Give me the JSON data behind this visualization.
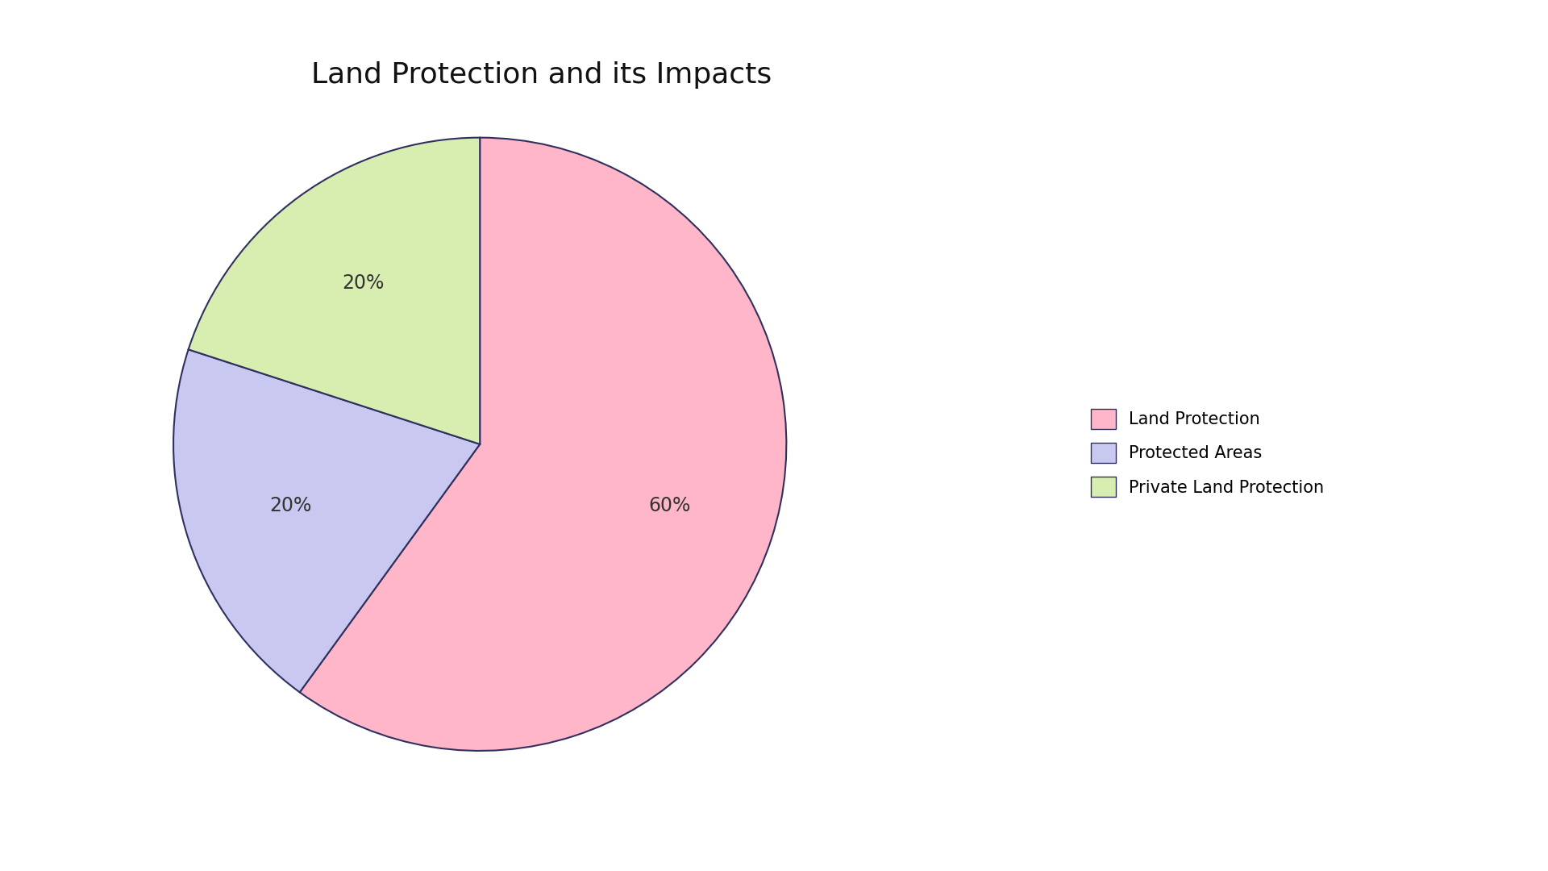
{
  "title": "Land Protection and its Impacts",
  "title_fontsize": 26,
  "labels": [
    "Land Protection",
    "Protected Areas",
    "Private Land Protection"
  ],
  "values": [
    60,
    20,
    20
  ],
  "colors": [
    "#FFB6C8",
    "#C8C8F0",
    "#D8EEB0"
  ],
  "edge_color": "#303060",
  "edge_width": 1.5,
  "autopct_fontsize": 17,
  "legend_fontsize": 15,
  "background_color": "#FFFFFF",
  "startangle": 90,
  "counterclock": false
}
